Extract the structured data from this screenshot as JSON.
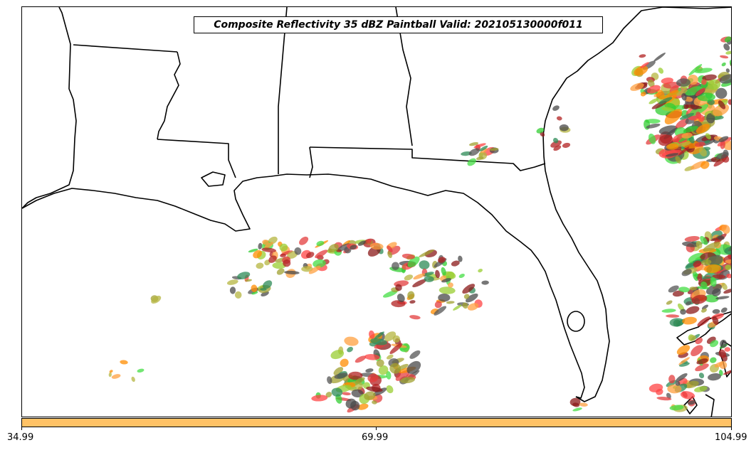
{
  "title": "Composite Reflectivity 35 dBZ Paintball Valid: 202105130000f011",
  "threshold_dbz": 35,
  "colors": {
    "background": "#ffffff",
    "boundaries": "#000000",
    "colorbar_fill": "#ffc266",
    "paintball_members": [
      "#b22222",
      "#e33e3e",
      "#ff4444",
      "#8b1a1a",
      "#2e8b57",
      "#32cd32",
      "#44dd44",
      "#9acd32",
      "#b5b540",
      "#ff8c00",
      "#ffa040",
      "#4a4a4a",
      "#555555",
      "#a0a030"
    ]
  },
  "colorbar": {
    "ticks": [
      "34.99",
      "69.99",
      "104.99"
    ]
  }
}
